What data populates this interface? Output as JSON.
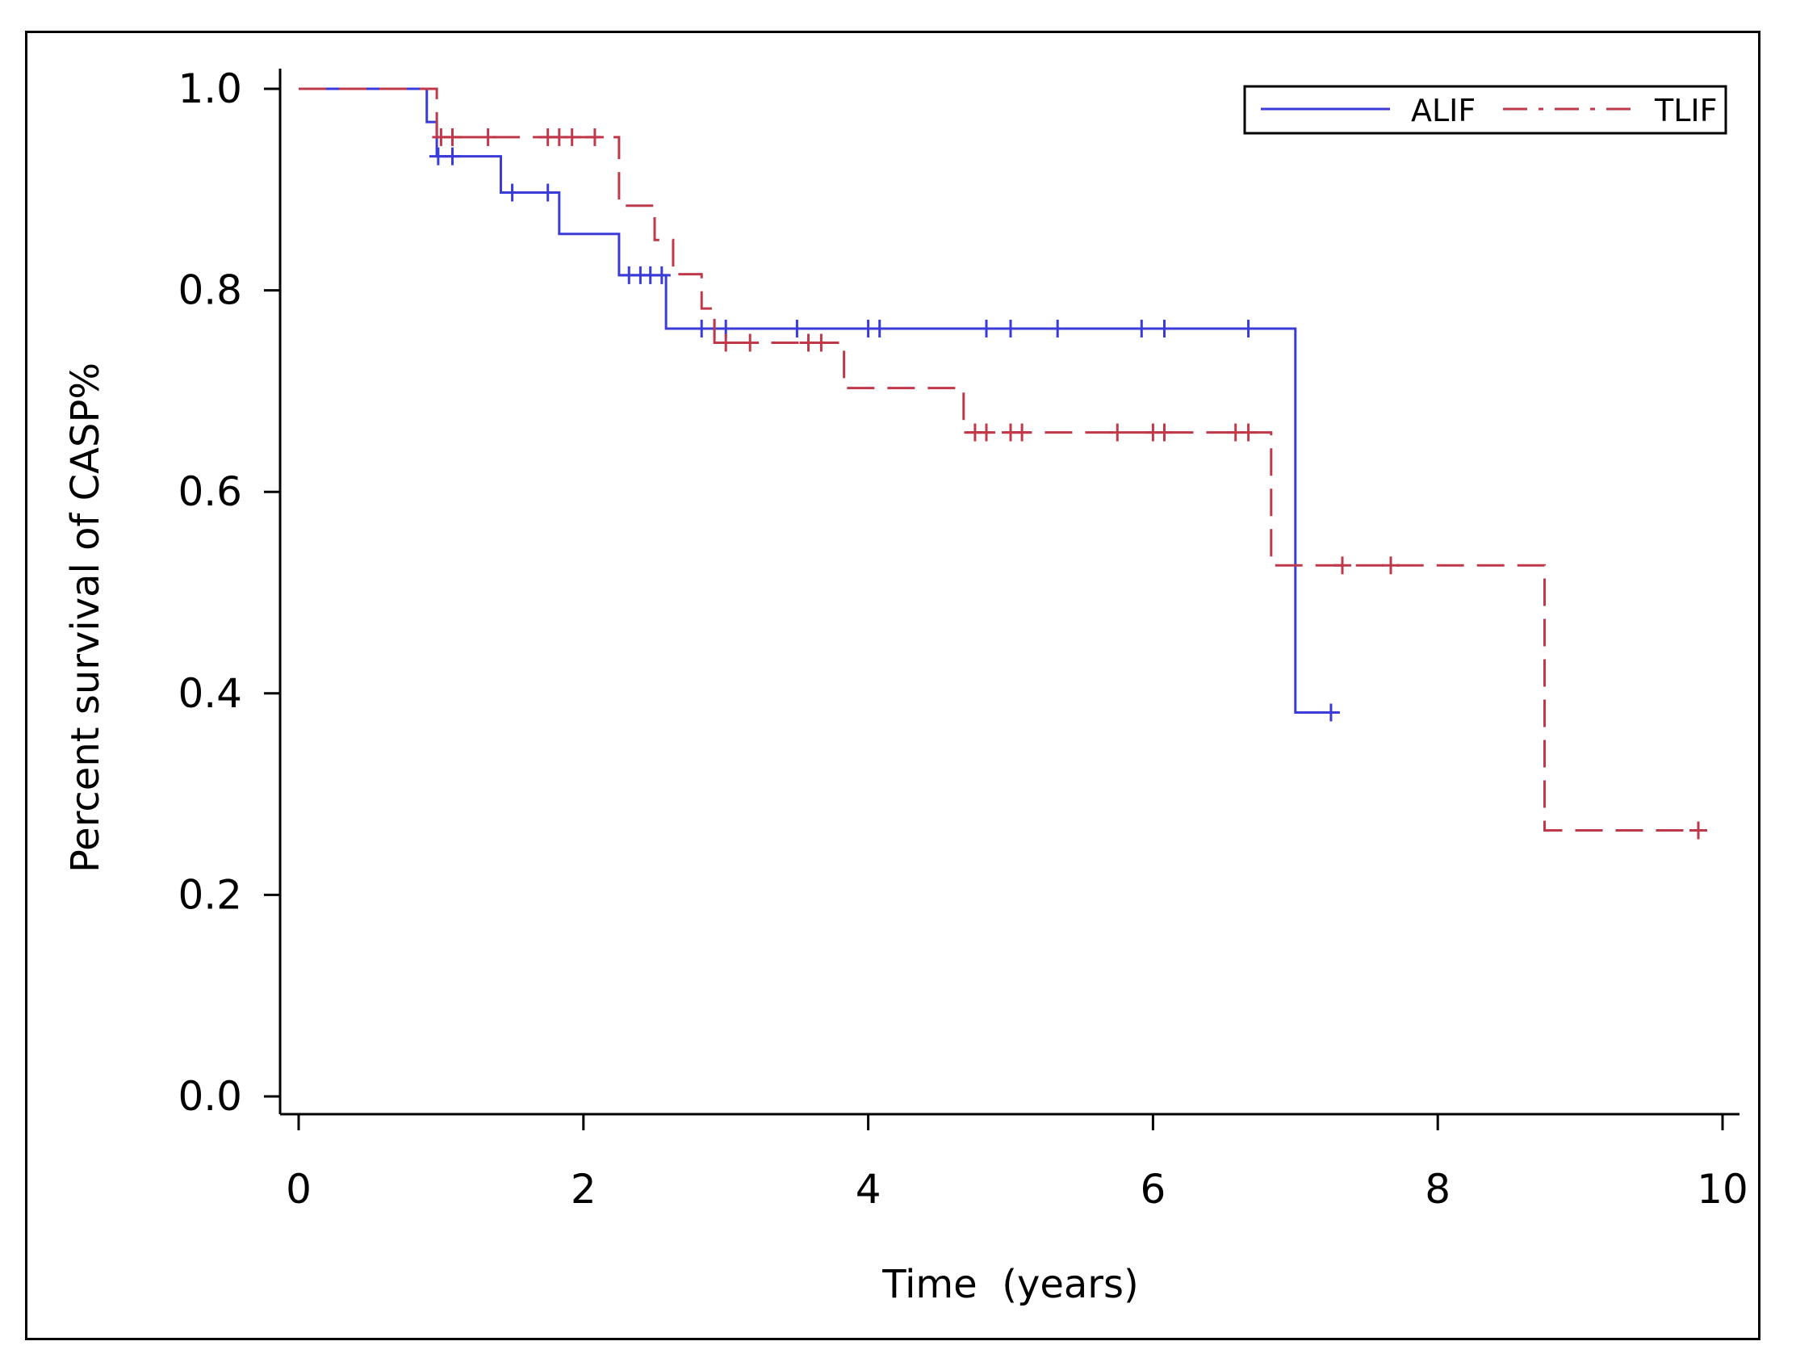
{
  "chart_data": {
    "type": "line",
    "title": "",
    "xlabel": "Time  (years)",
    "ylabel": "Percent survival of CASP%",
    "xlim": [
      0,
      10
    ],
    "ylim": [
      0,
      1
    ],
    "xticks": [
      "0",
      "2",
      "4",
      "6",
      "8",
      "10"
    ],
    "yticks": [
      "0.0",
      "0.2",
      "0.4",
      "0.6",
      "0.8",
      "1.0"
    ],
    "legend_position": "top-right",
    "series": [
      {
        "name": "ALIF",
        "color": "#3b3bd9",
        "dash": "solid",
        "steps": [
          [
            0,
            1.0
          ],
          [
            0.9,
            0.967
          ],
          [
            0.97,
            0.933
          ],
          [
            1.42,
            0.897
          ],
          [
            1.83,
            0.856
          ],
          [
            2.25,
            0.815
          ],
          [
            2.58,
            0.762
          ],
          [
            7.0,
            0.381
          ]
        ],
        "end_x": 7.27,
        "censored": [
          [
            0.98,
            0.933
          ],
          [
            1.08,
            0.933
          ],
          [
            1.5,
            0.897
          ],
          [
            1.75,
            0.897
          ],
          [
            2.32,
            0.815
          ],
          [
            2.4,
            0.815
          ],
          [
            2.47,
            0.815
          ],
          [
            2.55,
            0.815
          ],
          [
            2.83,
            0.762
          ],
          [
            2.92,
            0.762
          ],
          [
            3.0,
            0.762
          ],
          [
            3.5,
            0.762
          ],
          [
            4.0,
            0.762
          ],
          [
            4.08,
            0.762
          ],
          [
            4.83,
            0.762
          ],
          [
            5.0,
            0.762
          ],
          [
            5.33,
            0.762
          ],
          [
            5.92,
            0.762
          ],
          [
            6.08,
            0.762
          ],
          [
            6.67,
            0.762
          ],
          [
            7.25,
            0.381
          ]
        ]
      },
      {
        "name": "TLIF",
        "color": "#c0394b",
        "dash": "dashed",
        "steps": [
          [
            0,
            1.0
          ],
          [
            0.97,
            0.952
          ],
          [
            2.25,
            0.884
          ],
          [
            2.5,
            0.85
          ],
          [
            2.63,
            0.816
          ],
          [
            2.83,
            0.782
          ],
          [
            2.92,
            0.748
          ],
          [
            3.83,
            0.703
          ],
          [
            4.67,
            0.659
          ],
          [
            6.83,
            0.527
          ],
          [
            8.75,
            0.264
          ]
        ],
        "end_x": 9.83,
        "censored": [
          [
            1.0,
            0.952
          ],
          [
            1.08,
            0.952
          ],
          [
            1.33,
            0.952
          ],
          [
            1.75,
            0.952
          ],
          [
            1.83,
            0.952
          ],
          [
            1.92,
            0.952
          ],
          [
            2.08,
            0.952
          ],
          [
            3.0,
            0.748
          ],
          [
            3.17,
            0.748
          ],
          [
            3.58,
            0.748
          ],
          [
            3.67,
            0.748
          ],
          [
            4.75,
            0.659
          ],
          [
            4.83,
            0.659
          ],
          [
            5.0,
            0.659
          ],
          [
            5.08,
            0.659
          ],
          [
            5.75,
            0.659
          ],
          [
            6.0,
            0.659
          ],
          [
            6.08,
            0.659
          ],
          [
            6.58,
            0.659
          ],
          [
            6.67,
            0.659
          ],
          [
            7.33,
            0.527
          ],
          [
            7.67,
            0.527
          ],
          [
            9.83,
            0.264
          ]
        ]
      }
    ]
  }
}
